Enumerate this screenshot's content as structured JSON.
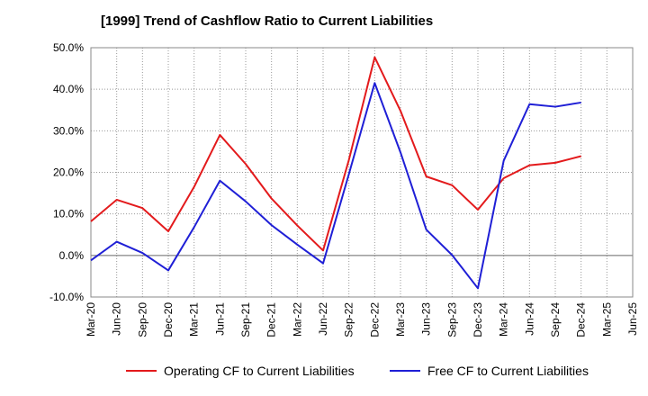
{
  "chart_data": {
    "type": "line",
    "title": "[1999]  Trend of Cashflow Ratio to Current Liabilities",
    "xlabel": "",
    "ylabel": "",
    "categories": [
      "Mar-20",
      "Jun-20",
      "Sep-20",
      "Dec-20",
      "Mar-21",
      "Jun-21",
      "Sep-21",
      "Dec-21",
      "Mar-22",
      "Jun-22",
      "Sep-22",
      "Dec-22",
      "Mar-23",
      "Jun-23",
      "Sep-23",
      "Dec-23",
      "Mar-24",
      "Jun-24",
      "Sep-24",
      "Dec-24",
      "Mar-25",
      "Jun-25"
    ],
    "ylim": [
      -10,
      50
    ],
    "yticks": [
      -10,
      0,
      10,
      20,
      30,
      40,
      50
    ],
    "ytick_labels": [
      "-10.0%",
      "0.0%",
      "10.0%",
      "20.0%",
      "30.0%",
      "40.0%",
      "50.0%"
    ],
    "grid": true,
    "legend_position": "bottom",
    "series": [
      {
        "name": "Operating CF to Current Liabilities",
        "color": "#e31a1c",
        "values": [
          8.2,
          13.4,
          11.4,
          5.8,
          16.5,
          29.0,
          22.0,
          13.7,
          7.2,
          1.2,
          23.0,
          47.7,
          34.8,
          19.0,
          16.9,
          11.0,
          18.6,
          21.7,
          22.3,
          23.9,
          null,
          null
        ]
      },
      {
        "name": "Free CF to Current Liabilities",
        "color": "#1f1fd6",
        "values": [
          -1.2,
          3.3,
          0.6,
          -3.6,
          6.8,
          18.0,
          13.0,
          7.3,
          2.6,
          -1.9,
          19.6,
          41.5,
          24.8,
          6.2,
          0.1,
          -7.9,
          22.8,
          36.4,
          35.8,
          36.8,
          null,
          null
        ]
      }
    ]
  }
}
